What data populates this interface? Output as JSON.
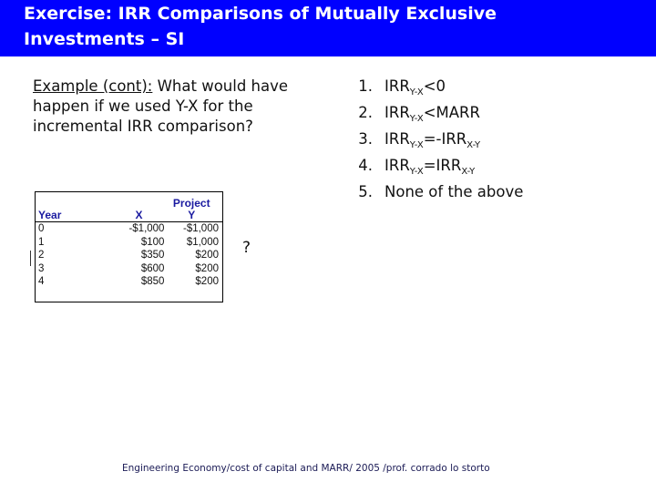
{
  "title": {
    "line1": "Exercise: IRR Comparisons of Mutually Exclusive",
    "line2": "Investments – SI"
  },
  "question": {
    "lead": "Example (cont):",
    "text": " What would have happen if we used Y-X for the incremental IRR comparison?"
  },
  "options": [
    {
      "num": "1.",
      "main": "IRR",
      "sub": "Y-X",
      "rest": "<0",
      "sub2": ""
    },
    {
      "num": "2.",
      "main": "IRR",
      "sub": "Y-X",
      "rest": "<MARR",
      "sub2": ""
    },
    {
      "num": "3.",
      "main": "IRR",
      "sub": "Y-X",
      "rest": "=-IRR",
      "sub2": "X-Y"
    },
    {
      "num": "4.",
      "main": "IRR",
      "sub": "Y-X",
      "rest": "=IRR",
      "sub2": "X-Y"
    },
    {
      "num": "5.",
      "main": "None of the above",
      "sub": "",
      "rest": "",
      "sub2": ""
    }
  ],
  "table": {
    "headers": {
      "year": "Year",
      "x": "X",
      "y_line1": "Project",
      "y_line2": "Y"
    },
    "rows": [
      {
        "year": "0",
        "x": "-$1,000",
        "y": "-$1,000"
      },
      {
        "year": "1",
        "x": "$100",
        "y": "$1,000"
      },
      {
        "year": "2",
        "x": "$350",
        "y": "$200"
      },
      {
        "year": "3",
        "x": "$600",
        "y": "$200"
      },
      {
        "year": "4",
        "x": "$850",
        "y": "$200"
      }
    ]
  },
  "qmark": "?",
  "footer": "Engineering Economy/cost of capital and MARR/ 2005 /prof. corrado lo storto"
}
